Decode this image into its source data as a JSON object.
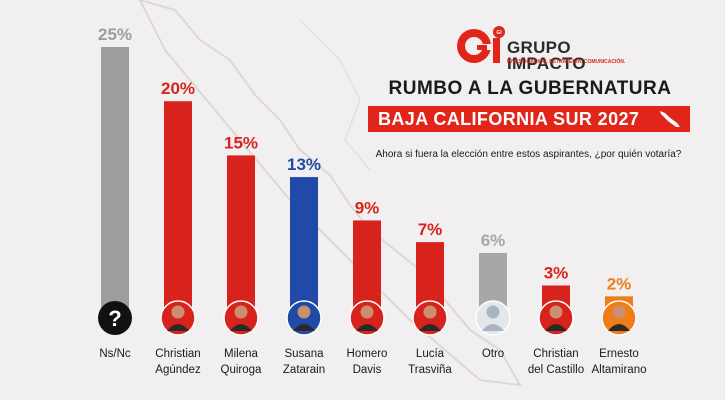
{
  "brand": {
    "mark_text": "Gi",
    "name_line1": "GRUPO",
    "name_line2": "IMPACTO",
    "tagline": "INVESTIGACIÓN. ESTRATEGIA. COMUNICACIÓN.",
    "accent_color": "#e1251b"
  },
  "headline": {
    "title": "RUMBO A LA GUBERNATURA",
    "banner": "BAJA CALIFORNIA SUR 2027",
    "question": "Ahora si fuera la elección entre estos aspirantes, ¿por quién votaría?"
  },
  "chart_data": {
    "type": "bar",
    "title": "RUMBO A LA GUBERNATURA - BAJA CALIFORNIA SUR 2027",
    "ylabel": "",
    "ylim": [
      0,
      25
    ],
    "categories": [
      [
        "Ns/Nc"
      ],
      [
        "Christian",
        "Agúndez"
      ],
      [
        "Milena",
        "Quiroga"
      ],
      [
        "Susana",
        "Zatarain"
      ],
      [
        "Homero",
        "Davis"
      ],
      [
        "Lucía",
        "Trasviña"
      ],
      [
        "Otro"
      ],
      [
        "Christian",
        "del Castillo"
      ],
      [
        "Ernesto",
        "Altamirano"
      ]
    ],
    "values": [
      25,
      20,
      15,
      13,
      9,
      7,
      6,
      3,
      2
    ],
    "labels": [
      "25%",
      "20%",
      "15%",
      "13%",
      "9%",
      "7%",
      "6%",
      "3%",
      "2%"
    ],
    "colors": [
      "#9d9d9d",
      "#d8231d",
      "#d8231d",
      "#1f4aa8",
      "#d8231d",
      "#d8231d",
      "#a7a7a7",
      "#d8231d",
      "#f07d1a"
    ],
    "avatars": [
      "question",
      "person",
      "person",
      "person",
      "person",
      "person",
      "generic",
      "person",
      "person"
    ]
  }
}
